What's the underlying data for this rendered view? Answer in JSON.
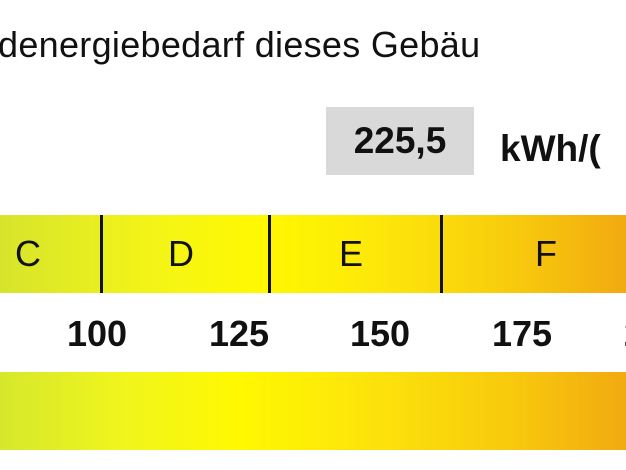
{
  "title": "denergiebedarf dieses Gebäu",
  "value": "225,5",
  "unit": "kWh/(",
  "classes": [
    "C",
    "D",
    "E",
    "F"
  ],
  "ticks": [
    "100",
    "125",
    "150",
    "175",
    "2"
  ],
  "colors": {
    "scale_start": "#d6e42c",
    "scale_mid": "#fff800",
    "scale_end": "#f2aa10",
    "value_box": "#d9d9d9"
  }
}
